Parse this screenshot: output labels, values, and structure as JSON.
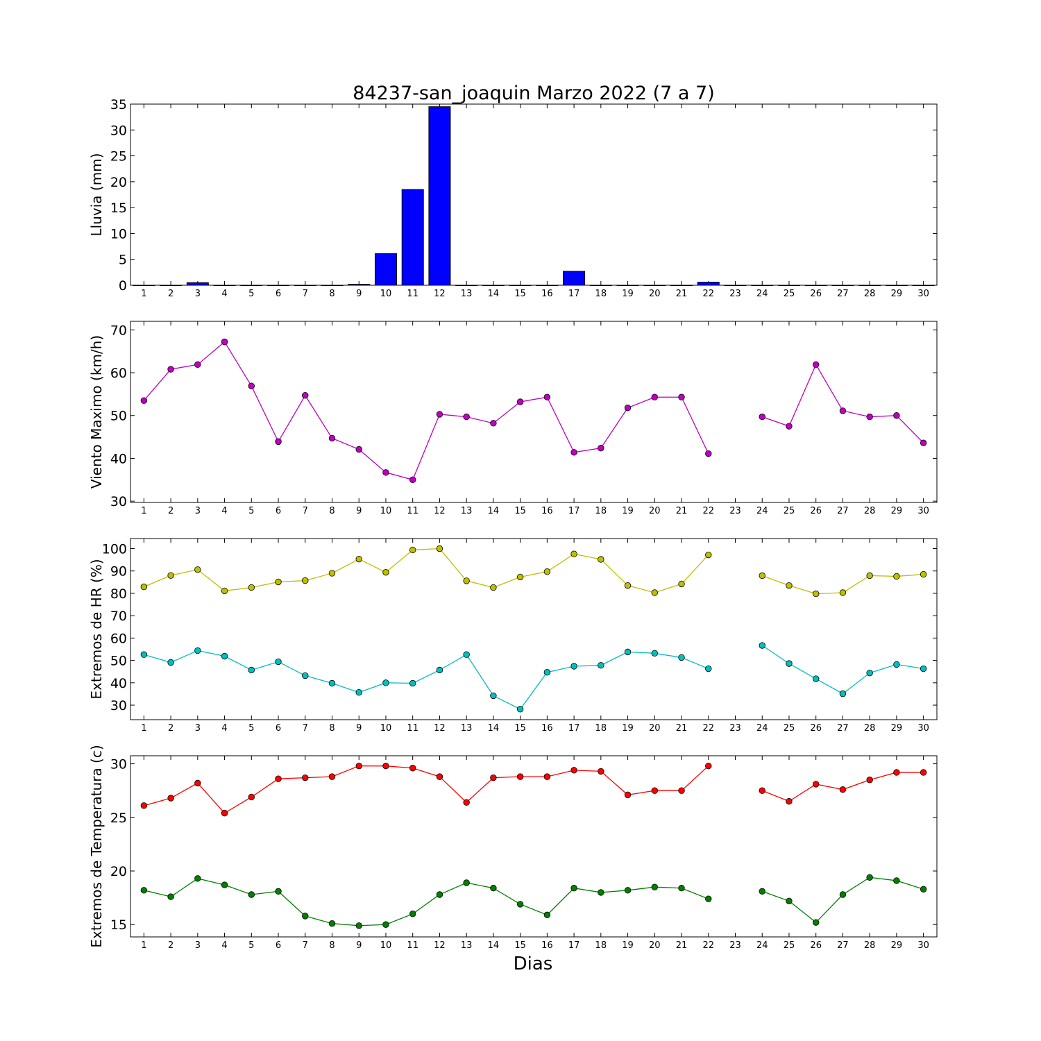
{
  "chart_data": {
    "type": "multi-panel",
    "title": "84237-san_joaquin Marzo 2022  (7 a 7)",
    "xlabel": "Dias",
    "days": [
      1,
      2,
      3,
      4,
      5,
      6,
      7,
      8,
      9,
      10,
      11,
      12,
      13,
      14,
      15,
      16,
      17,
      18,
      19,
      20,
      21,
      22,
      23,
      24,
      25,
      26,
      27,
      28,
      29,
      30
    ],
    "panels": [
      {
        "type": "bar",
        "ylabel": "Lluvia (mm)",
        "ylim": [
          0,
          35
        ],
        "yticks": [
          0,
          5,
          10,
          15,
          20,
          25,
          30,
          35
        ],
        "series": [
          {
            "color": "#0000ff",
            "values": [
              0,
              0,
              0.5,
              0,
              0,
              0,
              0,
              0,
              0.2,
              6.1,
              18.5,
              34.5,
              0,
              0,
              0,
              0,
              2.7,
              0,
              0,
              0,
              0,
              0.6,
              0,
              0,
              0,
              0,
              0,
              0,
              0,
              0
            ]
          }
        ]
      },
      {
        "type": "line",
        "ylabel": "Viento Maximo (km/h)",
        "ylim": [
          29.7,
          72
        ],
        "yticks": [
          30,
          40,
          50,
          60,
          70
        ],
        "series": [
          {
            "color": "#bf00bf",
            "values": [
              53.5,
              60.8,
              61.9,
              67.2,
              56.9,
              43.9,
              54.7,
              44.7,
              42.1,
              36.7,
              35.0,
              50.3,
              49.7,
              48.2,
              53.2,
              54.3,
              41.4,
              42.4,
              51.8,
              54.3,
              54.3,
              41.1,
              null,
              49.7,
              47.5,
              61.9,
              51.1,
              49.7,
              50.0,
              43.6
            ]
          }
        ]
      },
      {
        "type": "line",
        "ylabel": "Extremos de HR (%)",
        "ylim": [
          23.5,
          104.5
        ],
        "yticks": [
          30,
          40,
          50,
          60,
          70,
          80,
          90,
          100
        ],
        "series": [
          {
            "color": "#bfbf00",
            "values": [
              82.9,
              88,
              90.6,
              81.1,
              82.6,
              85.1,
              85.7,
              89,
              95.3,
              89.4,
              99.4,
              100,
              85.6,
              82.6,
              87.3,
              89.7,
              97.6,
              95.2,
              83.5,
              80.3,
              84.2,
              97.2,
              null,
              87.9,
              83.5,
              79.8,
              80.3,
              87.9,
              87.6,
              88.5
            ]
          },
          {
            "color": "#00bfbf",
            "values": [
              52.6,
              49.1,
              54.4,
              51.9,
              45.7,
              49.4,
              43.2,
              39.8,
              35.7,
              40.0,
              39.8,
              45.7,
              52.6,
              34.2,
              28.2,
              44.7,
              47.4,
              47.8,
              53.8,
              53.2,
              51.3,
              46.3,
              null,
              56.7,
              48.6,
              41.8,
              35.1,
              44.4,
              48.2,
              46.3
            ]
          }
        ]
      },
      {
        "type": "line",
        "ylabel": "Extremos de Temperatura (c)",
        "ylim": [
          13.85,
          30.75
        ],
        "yticks": [
          15,
          20,
          25,
          30
        ],
        "series": [
          {
            "color": "#ff0000",
            "values": [
              26.1,
              26.8,
              28.2,
              25.4,
              26.9,
              28.6,
              28.7,
              28.8,
              29.8,
              29.8,
              29.6,
              28.8,
              26.4,
              28.7,
              28.8,
              28.8,
              29.4,
              29.3,
              27.1,
              27.5,
              27.5,
              29.8,
              null,
              27.5,
              26.5,
              28.1,
              27.6,
              28.5,
              29.2,
              29.2
            ]
          },
          {
            "color": "#008000",
            "values": [
              18.2,
              17.6,
              19.3,
              18.7,
              17.8,
              18.1,
              15.8,
              15.1,
              14.9,
              15.0,
              16.0,
              17.8,
              18.9,
              18.4,
              16.9,
              15.9,
              18.4,
              18.0,
              18.2,
              18.5,
              18.4,
              17.4,
              null,
              18.1,
              17.2,
              15.2,
              17.8,
              19.4,
              19.1,
              18.3
            ]
          }
        ]
      }
    ]
  }
}
